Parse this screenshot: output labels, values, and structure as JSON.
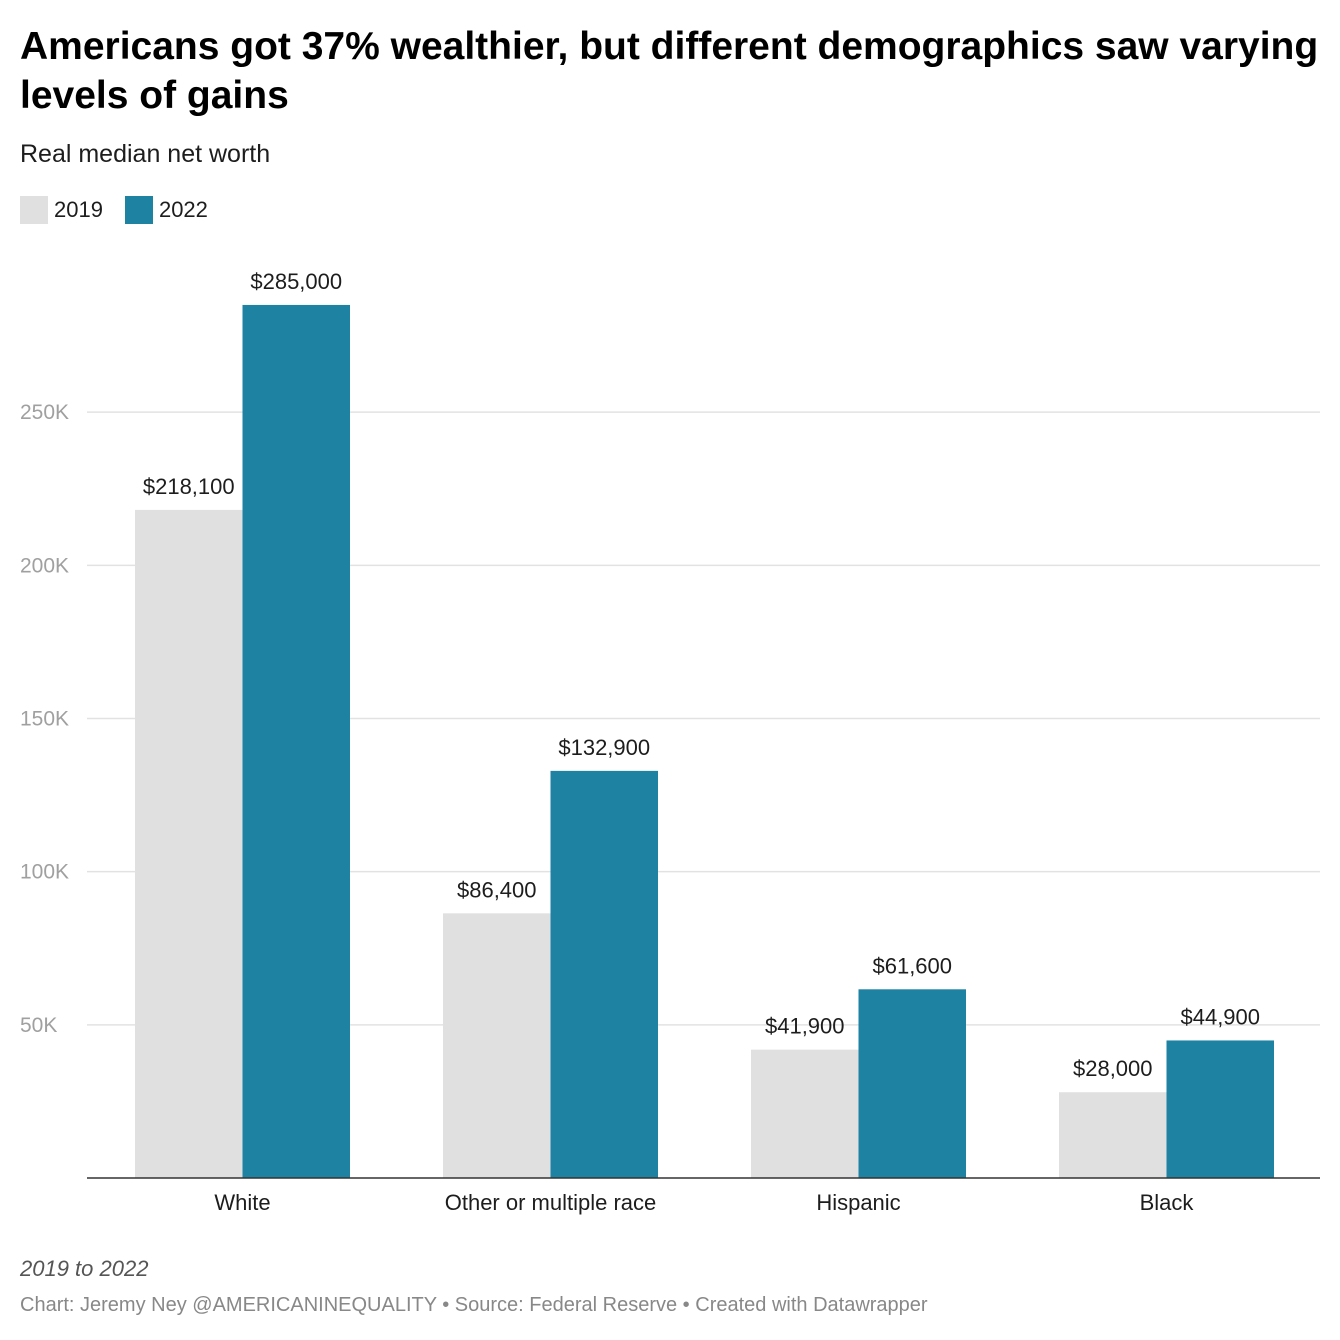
{
  "chart_data": {
    "type": "bar",
    "title": "Americans got 37% wealthier, but different demographics saw varying levels of gains",
    "subtitle": "Real median net worth",
    "categories": [
      "White",
      "Other or multiple race",
      "Hispanic",
      "Black"
    ],
    "series": [
      {
        "name": "2019",
        "color": "#e0e0e0",
        "values": [
          218100,
          86400,
          41900,
          28000
        ],
        "labels": [
          "$218,100",
          "$86,400",
          "$41,900",
          "$28,000"
        ]
      },
      {
        "name": "2022",
        "color": "#1e82a2",
        "values": [
          285000,
          132900,
          61600,
          44900
        ],
        "labels": [
          "$285,000",
          "$132,900",
          "$61,600",
          "$44,900"
        ]
      }
    ],
    "yticks": [
      50000,
      100000,
      150000,
      200000,
      250000
    ],
    "ytick_labels": [
      "50K",
      "100K",
      "150K",
      "200K",
      "250K"
    ],
    "ylim": [
      0,
      300000
    ],
    "xlabel": "",
    "ylabel": "",
    "grid": true,
    "legend": "top-left"
  },
  "note": "2019 to 2022",
  "footer": "Chart: Jeremy Ney @AMERICANINEQUALITY • Source: Federal Reserve • Created with Datawrapper"
}
